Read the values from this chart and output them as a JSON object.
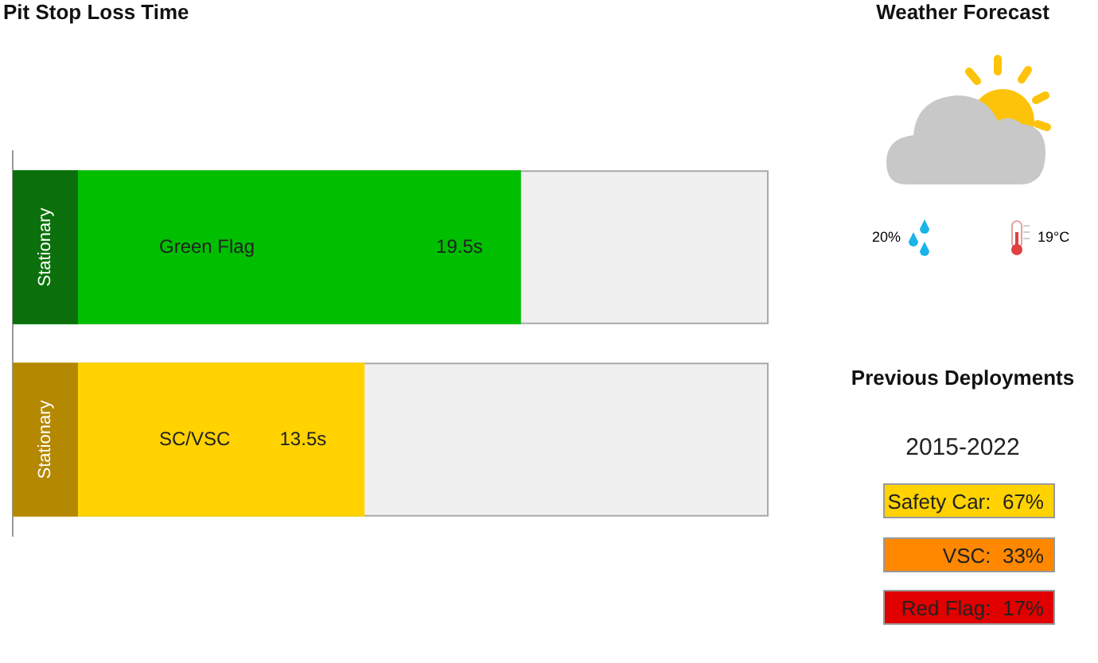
{
  "chart_data": [
    {
      "type": "bar",
      "title": "Pit Stop Loss Time",
      "orientation": "horizontal",
      "categories": [
        "Green Flag",
        "SC/VSC"
      ],
      "values": [
        19.5,
        13.5
      ],
      "colors": [
        "#00bf00",
        "#ffd200"
      ],
      "value_labels": [
        "19.5s",
        "13.5s"
      ],
      "bands": [
        {
          "axis": "x",
          "from": 0,
          "to": 2.5,
          "label": "Stationary",
          "color": "#0b700b"
        },
        {
          "axis": "x",
          "from": 0,
          "to": 2.5,
          "label": "Stationary",
          "color": "#b48800"
        }
      ],
      "xlim": [
        0,
        29
      ],
      "tick_labels": false,
      "legend": false
    },
    {
      "type": "other",
      "title": "Weather Forecast",
      "annotations": [
        "20%",
        "19°C"
      ]
    },
    {
      "type": "other",
      "title": "Previous Deployments",
      "subtitle": "2015-2022",
      "categories": [
        "Safety Car:  67%",
        "VSC:  33%",
        "Red Flag:  17%"
      ],
      "colors": [
        "#ffd200",
        "#ff8800",
        "#e00000"
      ]
    }
  ]
}
